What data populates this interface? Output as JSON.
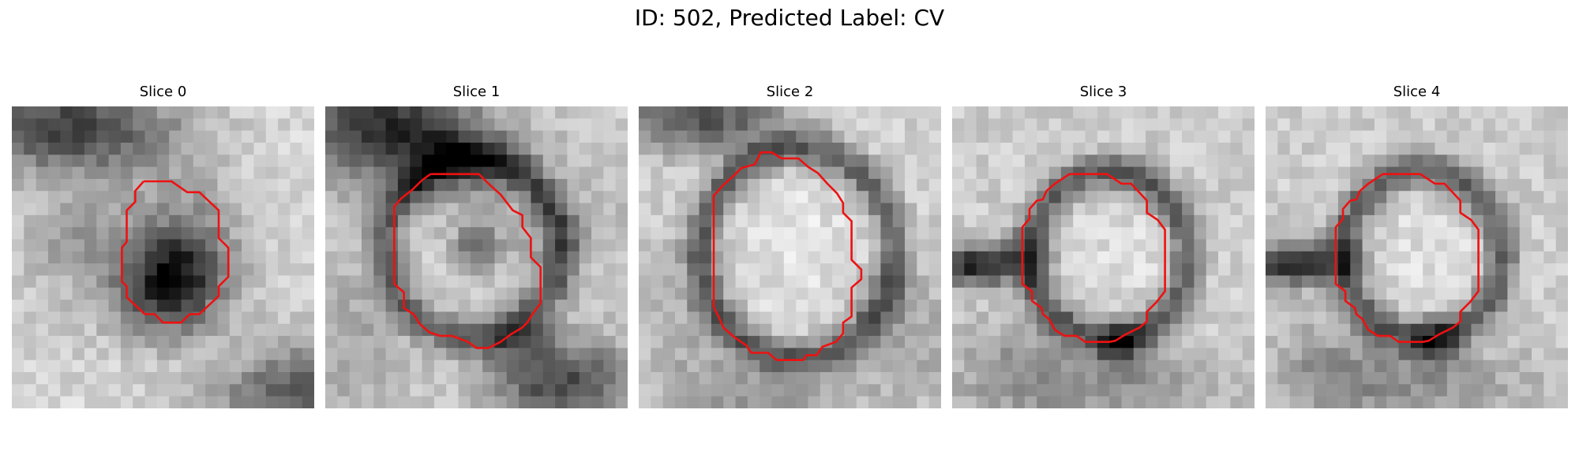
{
  "figure": {
    "title": "ID: 502, Predicted Label: CV"
  },
  "panels": [
    {
      "title": "Slice 0"
    },
    {
      "title": "Slice 1"
    },
    {
      "title": "Slice 2"
    },
    {
      "title": "Slice 3"
    },
    {
      "title": "Slice 4"
    }
  ],
  "colors": {
    "contour": "#ee1111",
    "background": "#ffffff"
  }
}
